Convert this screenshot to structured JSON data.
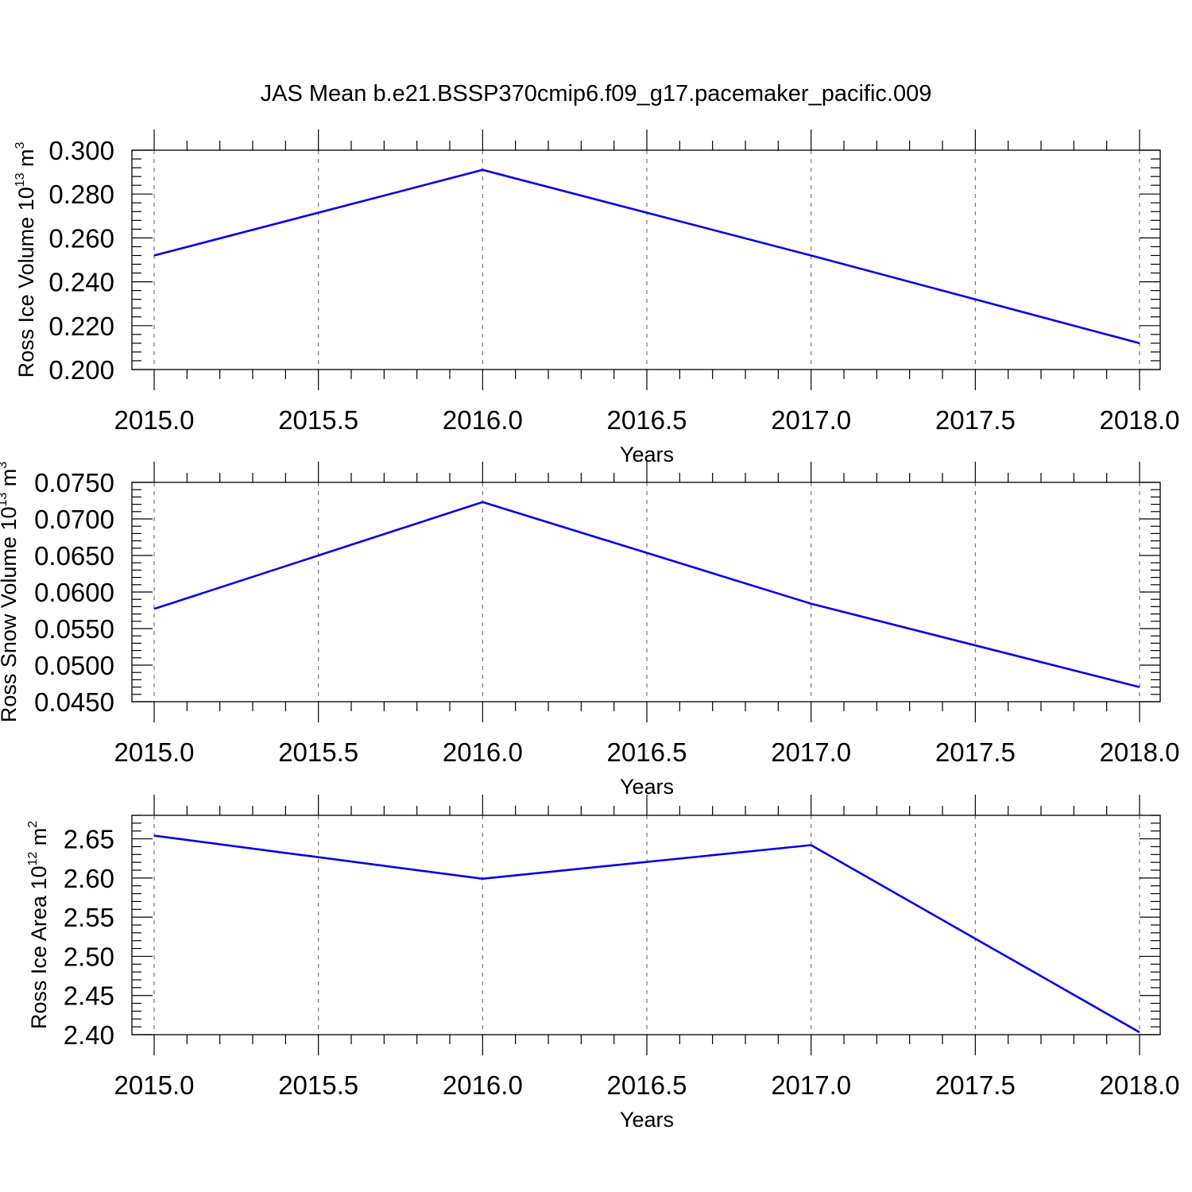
{
  "title": "JAS Mean b.e21.BSSP370cmip6.f09_g17.pacemaker_pacific.009",
  "colors": {
    "line": "#0000ee",
    "grid": "#777777",
    "axis": "#000000"
  },
  "chart_data": [
    {
      "type": "line",
      "xlabel": "Years",
      "ylabel": {
        "main": "Ross Ice Volume 10",
        "exp": "13",
        "unit": " m",
        "unit_exp": "3"
      },
      "x": [
        2015,
        2016,
        2017,
        2018
      ],
      "values": [
        0.252,
        0.291,
        0.252,
        0.212
      ],
      "xlim": [
        2015.0,
        2018.0
      ],
      "ylim": [
        0.2,
        0.3
      ],
      "xticks": [
        2015.0,
        2015.5,
        2016.0,
        2016.5,
        2017.0,
        2017.5,
        2018.0
      ],
      "xtick_labels": [
        "2015.0",
        "2015.5",
        "2016.0",
        "2016.5",
        "2017.0",
        "2017.5",
        "2018.0"
      ],
      "yticks": [
        0.2,
        0.22,
        0.24,
        0.26,
        0.28,
        0.3
      ],
      "ytick_labels": [
        "0.200",
        "0.220",
        "0.240",
        "0.260",
        "0.280",
        "0.300"
      ],
      "grid": "vertical-dashed"
    },
    {
      "type": "line",
      "xlabel": "Years",
      "ylabel": {
        "main": "Ross Snow Volume 10",
        "exp": "13",
        "unit": " m",
        "unit_exp": "3"
      },
      "x": [
        2015,
        2016,
        2017,
        2018
      ],
      "values": [
        0.0577,
        0.0723,
        0.0584,
        0.047
      ],
      "xlim": [
        2015.0,
        2018.0
      ],
      "ylim": [
        0.045,
        0.075
      ],
      "xticks": [
        2015.0,
        2015.5,
        2016.0,
        2016.5,
        2017.0,
        2017.5,
        2018.0
      ],
      "xtick_labels": [
        "2015.0",
        "2015.5",
        "2016.0",
        "2016.5",
        "2017.0",
        "2017.5",
        "2018.0"
      ],
      "yticks": [
        0.045,
        0.05,
        0.055,
        0.06,
        0.065,
        0.07,
        0.075
      ],
      "ytick_labels": [
        "0.0450",
        "0.0500",
        "0.0550",
        "0.0600",
        "0.0650",
        "0.0700",
        "0.0750"
      ],
      "grid": "vertical-dashed"
    },
    {
      "type": "line",
      "xlabel": "Years",
      "ylabel": {
        "main": "Ross Ice Area 10",
        "exp": "12",
        "unit": " m",
        "unit_exp": "2"
      },
      "x": [
        2015,
        2016,
        2017,
        2018
      ],
      "values": [
        2.654,
        2.599,
        2.642,
        2.403
      ],
      "xlim": [
        2015.0,
        2018.0
      ],
      "ylim": [
        2.4,
        2.68
      ],
      "xticks": [
        2015.0,
        2015.5,
        2016.0,
        2016.5,
        2017.0,
        2017.5,
        2018.0
      ],
      "xtick_labels": [
        "2015.0",
        "2015.5",
        "2016.0",
        "2016.5",
        "2017.0",
        "2017.5",
        "2018.0"
      ],
      "yticks": [
        2.4,
        2.45,
        2.5,
        2.55,
        2.6,
        2.65
      ],
      "ytick_labels": [
        "2.40",
        "2.45",
        "2.50",
        "2.55",
        "2.60",
        "2.65"
      ],
      "grid": "vertical-dashed"
    }
  ]
}
